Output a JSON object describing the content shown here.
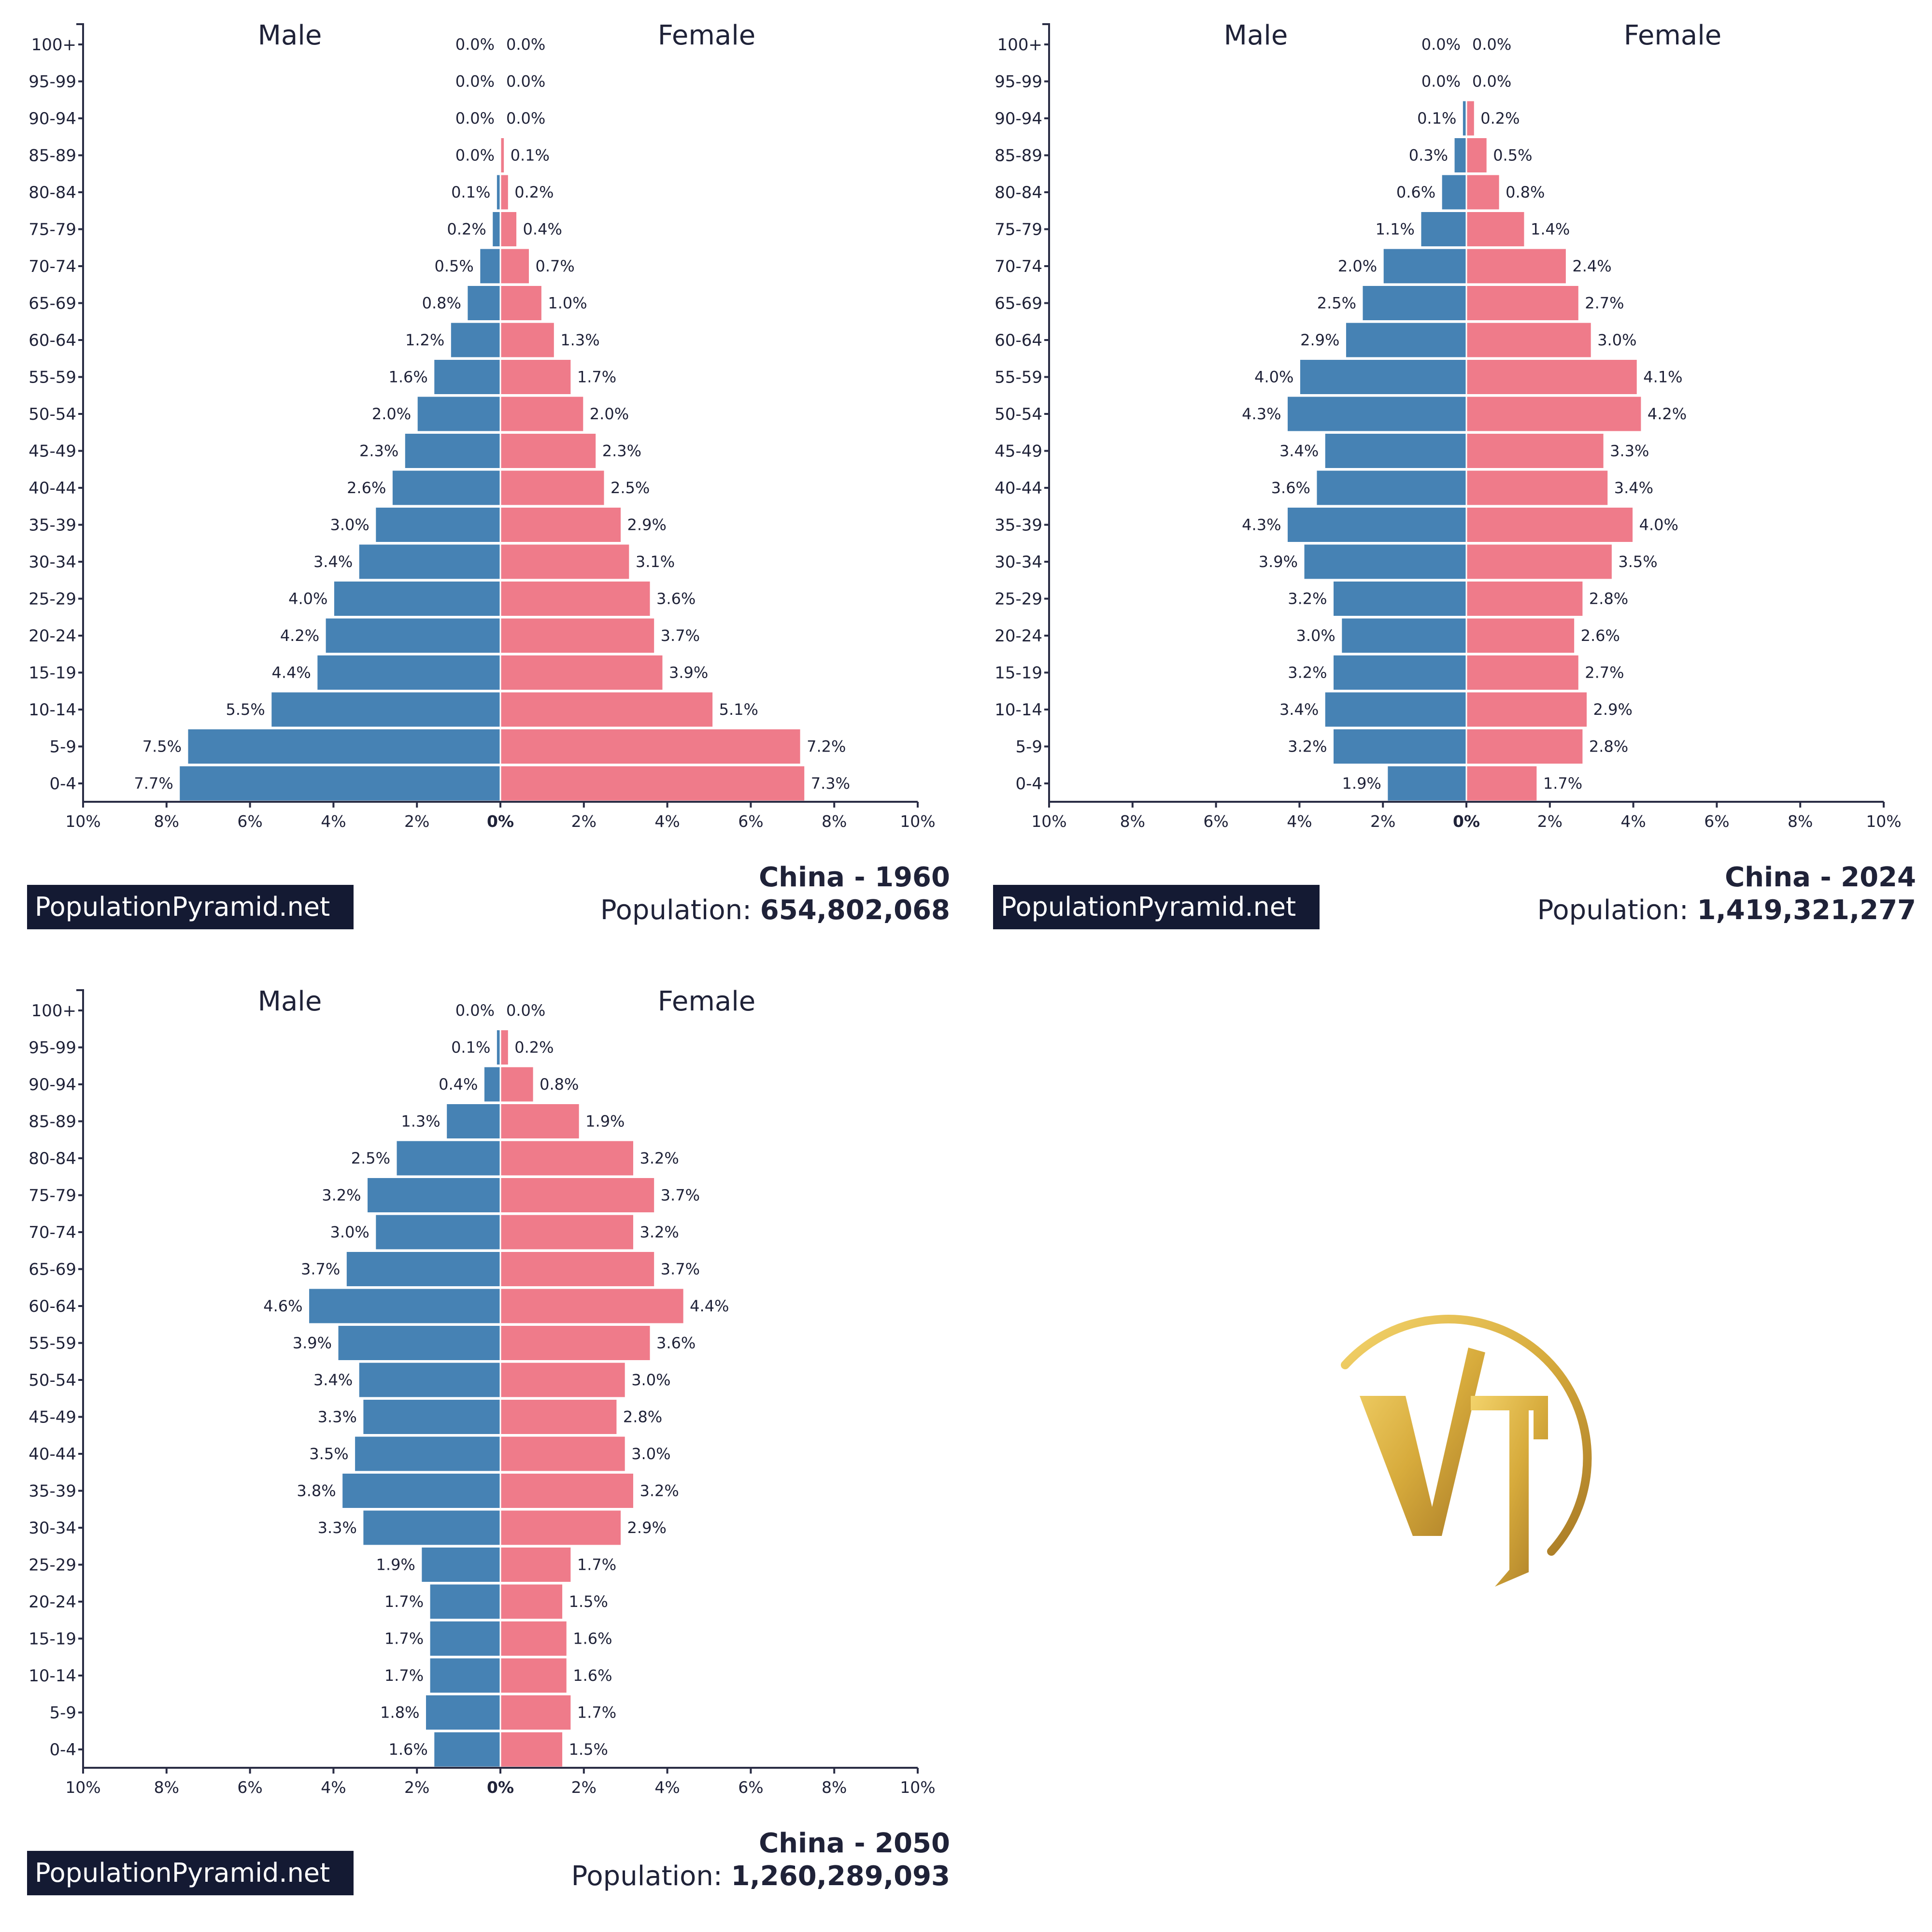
{
  "colors": {
    "male": "#4682b4",
    "female": "#ef7b8a",
    "brand_bg": "#141a33",
    "logo_gold": "#d7ab3c"
  },
  "logo": {
    "name": "VT monogram logo",
    "text": "VT"
  },
  "chart_data": [
    {
      "type": "bar",
      "orientation": "horizontal-population-pyramid",
      "title": "China - 1960",
      "population_label": "Population:",
      "population_value": "654,802,068",
      "brand": "PopulationPyramid.net",
      "male_label": "Male",
      "female_label": "Female",
      "xlim": [
        -10,
        10
      ],
      "x_ticks": [
        "10%",
        "8%",
        "6%",
        "4%",
        "2%",
        "0%",
        "2%",
        "4%",
        "6%",
        "8%",
        "10%"
      ],
      "categories": [
        "0-4",
        "5-9",
        "10-14",
        "15-19",
        "20-24",
        "25-29",
        "30-34",
        "35-39",
        "40-44",
        "45-49",
        "50-54",
        "55-59",
        "60-64",
        "65-69",
        "70-74",
        "75-79",
        "80-84",
        "85-89",
        "90-94",
        "95-99",
        "100+"
      ],
      "series": [
        {
          "name": "Male",
          "values": [
            7.7,
            7.5,
            5.5,
            4.4,
            4.2,
            4.0,
            3.4,
            3.0,
            2.6,
            2.3,
            2.0,
            1.6,
            1.2,
            0.8,
            0.5,
            0.2,
            0.1,
            0.0,
            0.0,
            0.0,
            0.0
          ]
        },
        {
          "name": "Female",
          "values": [
            7.3,
            7.2,
            5.1,
            3.9,
            3.7,
            3.6,
            3.1,
            2.9,
            2.5,
            2.3,
            2.0,
            1.7,
            1.3,
            1.0,
            0.7,
            0.4,
            0.2,
            0.1,
            0.0,
            0.0,
            0.0
          ]
        }
      ]
    },
    {
      "type": "bar",
      "orientation": "horizontal-population-pyramid",
      "title": "China - 2024",
      "population_label": "Population:",
      "population_value": "1,419,321,277",
      "brand": "PopulationPyramid.net",
      "male_label": "Male",
      "female_label": "Female",
      "xlim": [
        -10,
        10
      ],
      "x_ticks": [
        "10%",
        "8%",
        "6%",
        "4%",
        "2%",
        "0%",
        "2%",
        "4%",
        "6%",
        "8%",
        "10%"
      ],
      "categories": [
        "0-4",
        "5-9",
        "10-14",
        "15-19",
        "20-24",
        "25-29",
        "30-34",
        "35-39",
        "40-44",
        "45-49",
        "50-54",
        "55-59",
        "60-64",
        "65-69",
        "70-74",
        "75-79",
        "80-84",
        "85-89",
        "90-94",
        "95-99",
        "100+"
      ],
      "series": [
        {
          "name": "Male",
          "values": [
            1.9,
            3.2,
            3.4,
            3.2,
            3.0,
            3.2,
            3.9,
            4.3,
            3.6,
            3.4,
            4.3,
            4.0,
            2.9,
            2.5,
            2.0,
            1.1,
            0.6,
            0.3,
            0.1,
            0.0,
            0.0
          ]
        },
        {
          "name": "Female",
          "values": [
            1.7,
            2.8,
            2.9,
            2.7,
            2.6,
            2.8,
            3.5,
            4.0,
            3.4,
            3.3,
            4.2,
            4.1,
            3.0,
            2.7,
            2.4,
            1.4,
            0.8,
            0.5,
            0.2,
            0.0,
            0.0
          ]
        }
      ]
    },
    {
      "type": "bar",
      "orientation": "horizontal-population-pyramid",
      "title": "China - 2050",
      "population_label": "Population:",
      "population_value": "1,260,289,093",
      "brand": "PopulationPyramid.net",
      "male_label": "Male",
      "female_label": "Female",
      "xlim": [
        -10,
        10
      ],
      "x_ticks": [
        "10%",
        "8%",
        "6%",
        "4%",
        "2%",
        "0%",
        "2%",
        "4%",
        "6%",
        "8%",
        "10%"
      ],
      "categories": [
        "0-4",
        "5-9",
        "10-14",
        "15-19",
        "20-24",
        "25-29",
        "30-34",
        "35-39",
        "40-44",
        "45-49",
        "50-54",
        "55-59",
        "60-64",
        "65-69",
        "70-74",
        "75-79",
        "80-84",
        "85-89",
        "90-94",
        "95-99",
        "100+"
      ],
      "series": [
        {
          "name": "Male",
          "values": [
            1.6,
            1.8,
            1.7,
            1.7,
            1.7,
            1.9,
            3.3,
            3.8,
            3.5,
            3.3,
            3.4,
            3.9,
            4.6,
            3.7,
            3.0,
            3.2,
            2.5,
            1.3,
            0.4,
            0.1,
            0.0
          ]
        },
        {
          "name": "Female",
          "values": [
            1.5,
            1.7,
            1.6,
            1.6,
            1.5,
            1.7,
            2.9,
            3.2,
            3.0,
            2.8,
            3.0,
            3.6,
            4.4,
            3.7,
            3.2,
            3.7,
            3.2,
            1.9,
            0.8,
            0.2,
            0.0
          ]
        }
      ]
    }
  ]
}
